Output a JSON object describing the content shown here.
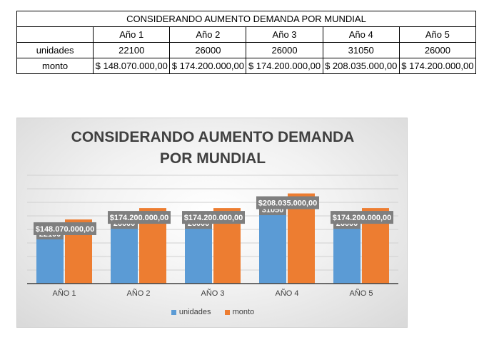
{
  "table": {
    "title": "CONSIDERANDO AUMENTO DEMANDA POR MUNDIAL",
    "headers": [
      "Año 1",
      "Año 2",
      "Año 3",
      "Año 4",
      "Año 5"
    ],
    "rows": [
      {
        "label": "unidades",
        "cells": [
          "22100",
          "26000",
          "26000",
          "31050",
          "26000"
        ]
      },
      {
        "label": "monto",
        "cells": [
          "$ 148.070.000,00",
          "$ 174.200.000,00",
          "$ 174.200.000,00",
          "$ 208.035.000,00",
          "$ 174.200.000,00"
        ]
      }
    ]
  },
  "chart_data": {
    "type": "bar",
    "title_line1": "CONSIDERANDO AUMENTO DEMANDA",
    "title_line2": "POR MUNDIAL",
    "categories": [
      "AÑO 1",
      "AÑO 2",
      "AÑO 3",
      "AÑO 4",
      "AÑO 5"
    ],
    "series": [
      {
        "name": "unidades",
        "color": "#5b9bd5",
        "values": [
          22100,
          26000,
          26000,
          31050,
          26000
        ],
        "labels": [
          "22100",
          "26000",
          "26000",
          "31050",
          "26000"
        ]
      },
      {
        "name": "monto",
        "color": "#ed7d31",
        "values": [
          148070000,
          174200000,
          174200000,
          208035000,
          174200000
        ],
        "labels": [
          "$148.070.000,00",
          "$174.200.000,00",
          "$174.200.000,00",
          "$208.035.000,00",
          "$174.200.000,00"
        ]
      }
    ],
    "secondary_axis": true,
    "grid": true,
    "legend_position": "bottom",
    "xlabel": "",
    "ylabel": ""
  }
}
